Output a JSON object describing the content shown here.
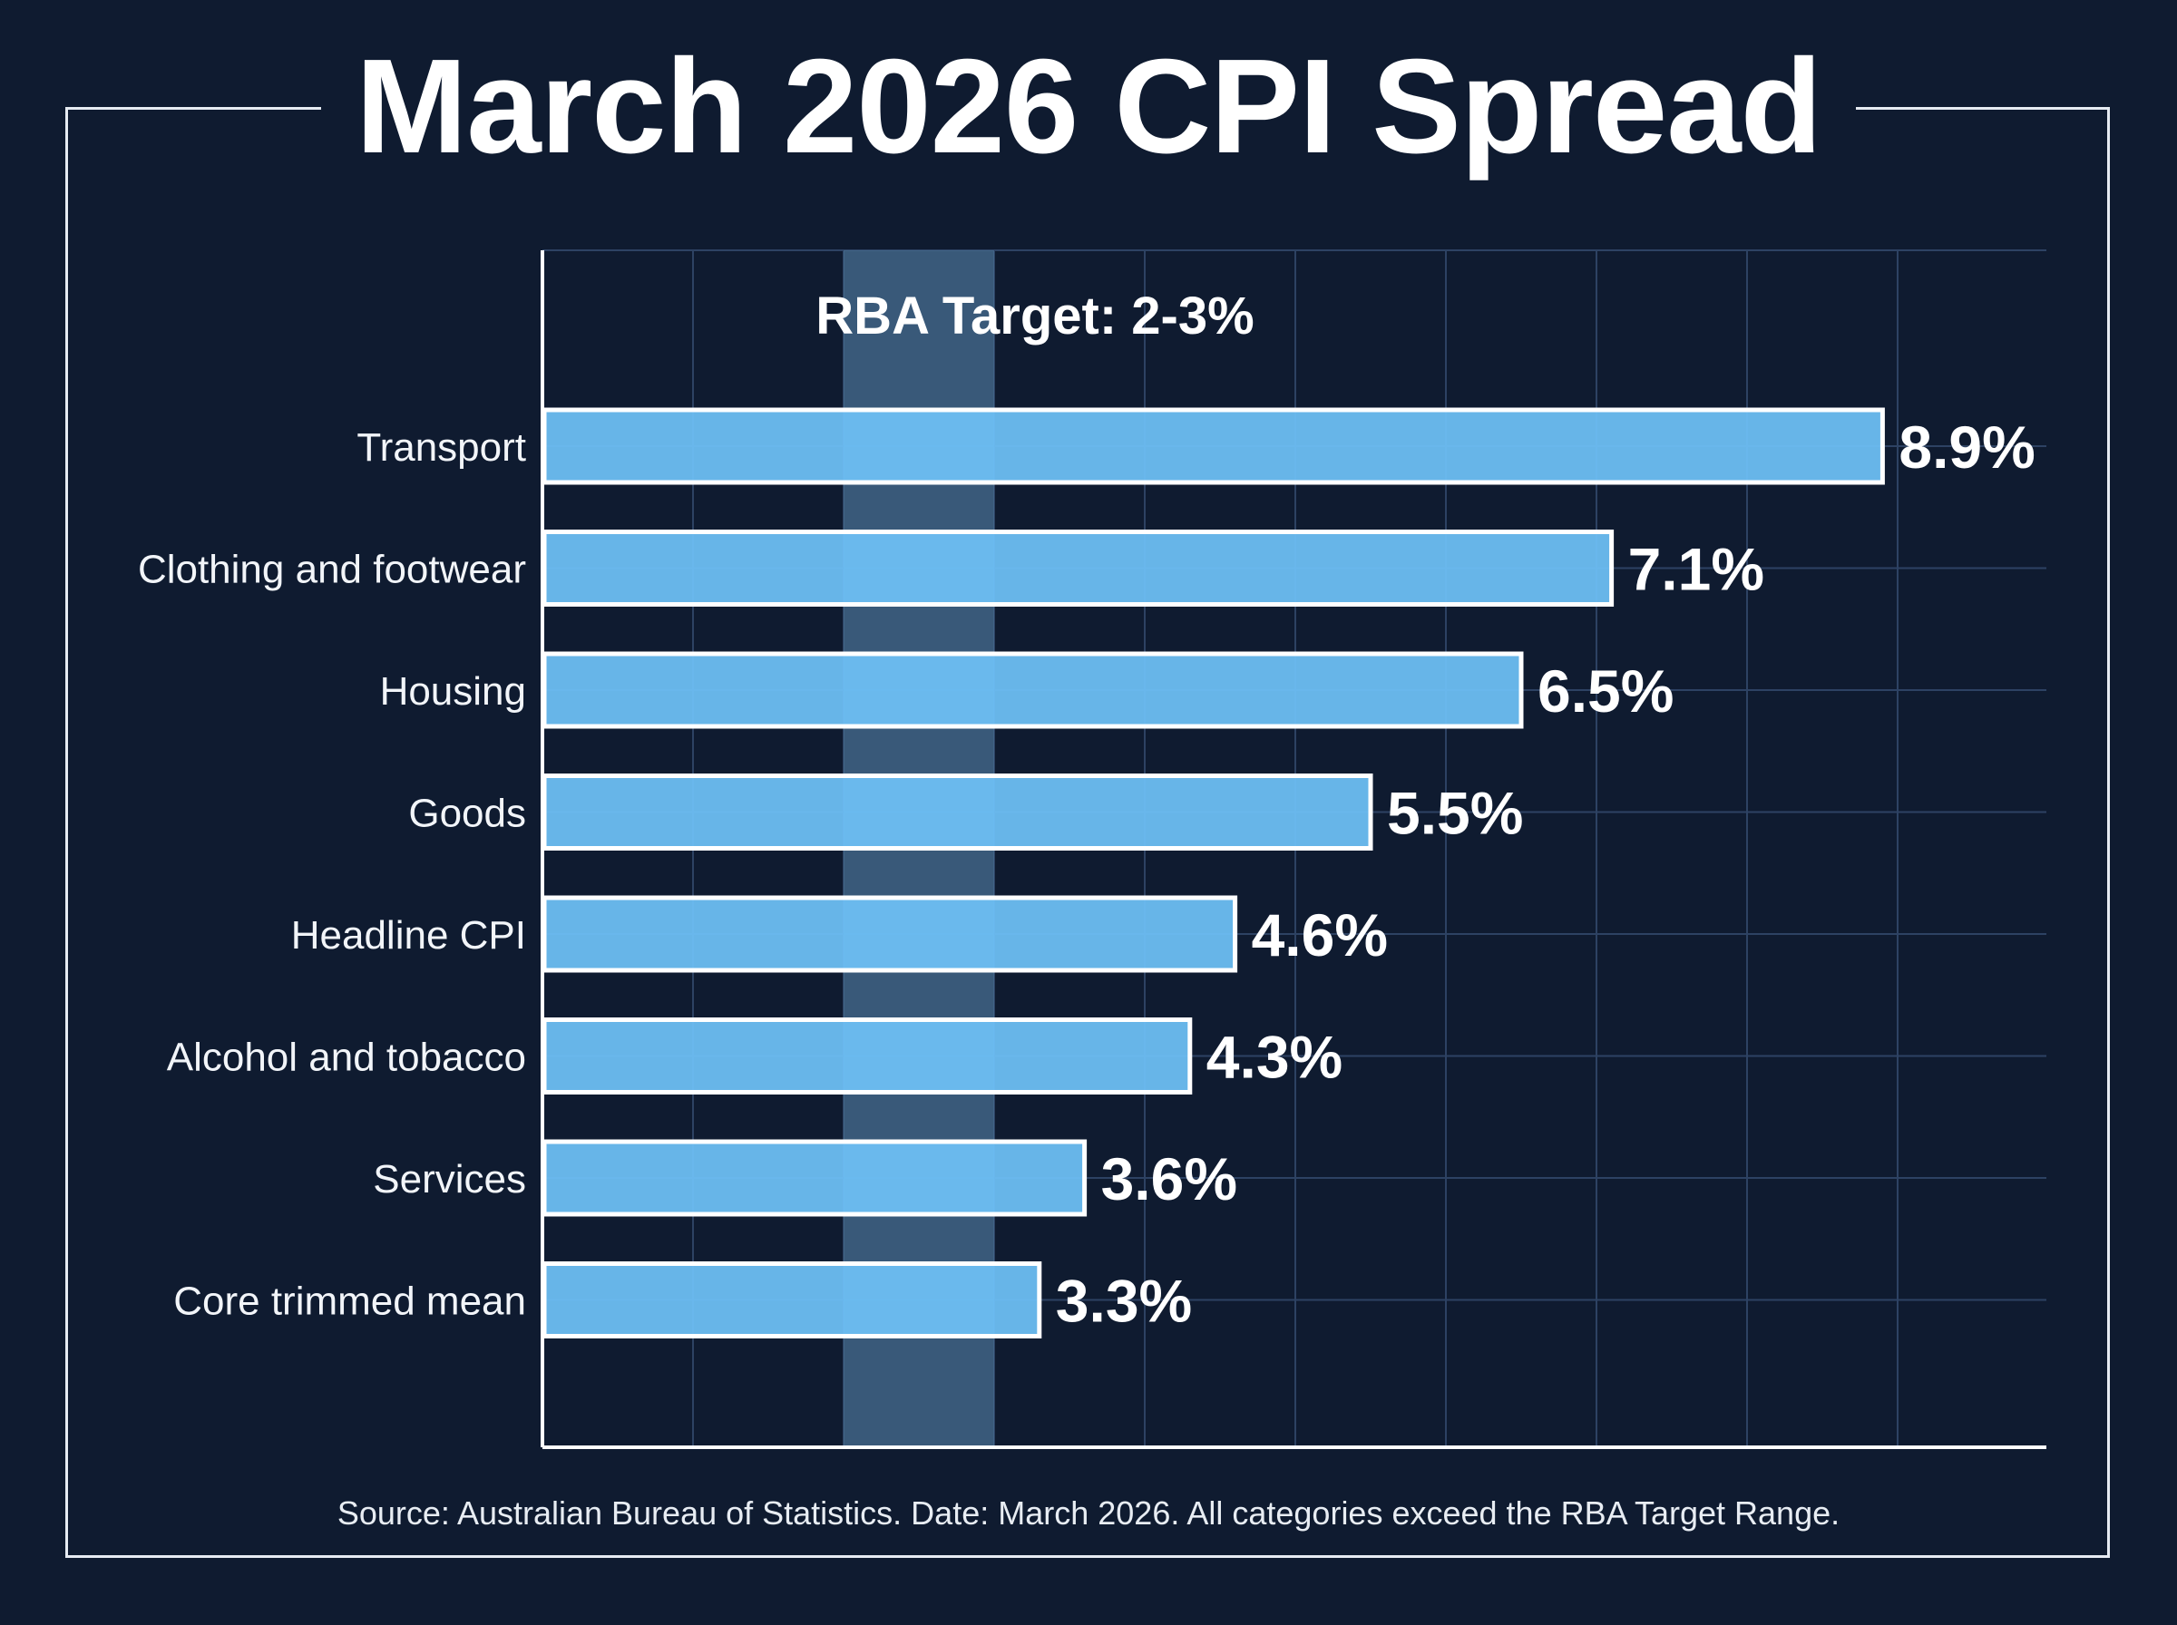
{
  "title": "March 2026 CPI Spread",
  "target_band": {
    "label": "RBA Target: 2-3%",
    "low": 2,
    "high": 3
  },
  "source": "Source: Australian Bureau of Statistics. Date: March 2026. All categories exceed the RBA Target Range.",
  "colors": {
    "background": "#0f1b30",
    "bar": "#6ec1f6",
    "bar_border": "#ffffff",
    "target_band": "#4a7196",
    "grid": "#2d4263",
    "text": "#ffffff"
  },
  "chart_data": {
    "type": "bar",
    "orientation": "horizontal",
    "categories": [
      "Transport",
      "Clothing and footwear",
      "Housing",
      "Goods",
      "Headline CPI",
      "Alcohol and tobacco",
      "Services",
      "Core trimmed mean"
    ],
    "values": [
      8.9,
      7.1,
      6.5,
      5.5,
      4.6,
      4.3,
      3.6,
      3.3
    ],
    "value_labels": [
      "8.9%",
      "7.1%",
      "6.5%",
      "5.5%",
      "4.6%",
      "4.3%",
      "3.6%",
      "3.3%"
    ],
    "title": "March 2026 CPI Spread",
    "xlabel": "",
    "ylabel": "",
    "xlim": [
      0,
      10
    ],
    "grid": true,
    "legend": "none"
  }
}
